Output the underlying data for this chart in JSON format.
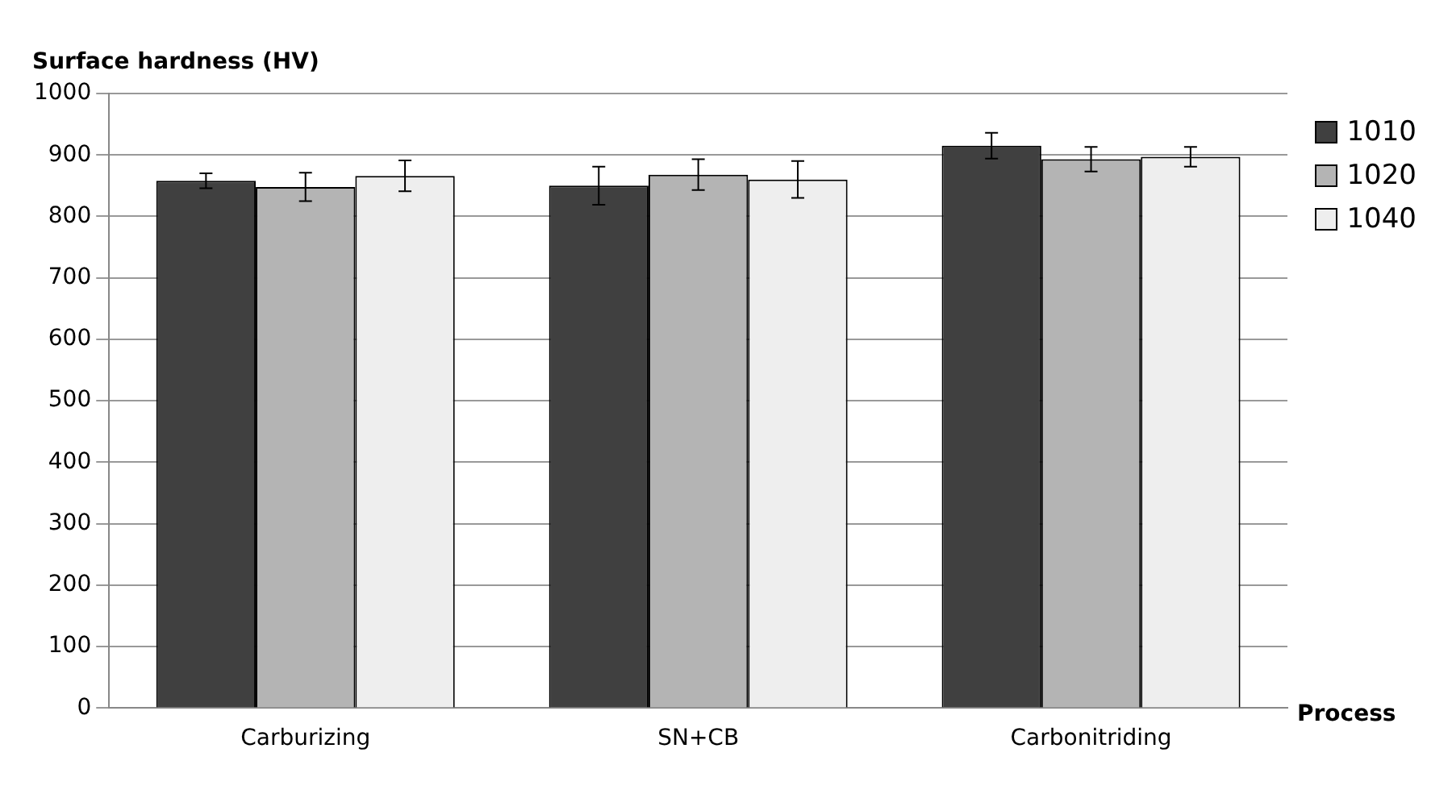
{
  "chart_data": {
    "type": "bar",
    "xlabel": "Process",
    "ylabel": "Surface hardness (HV)",
    "categories": [
      "Carburizing",
      "SN+CB",
      "Carbonitriding"
    ],
    "series": [
      {
        "name": "1010",
        "color": "#404040",
        "values": [
          858,
          850,
          915
        ],
        "errors": [
          12,
          31,
          21
        ]
      },
      {
        "name": "1020",
        "color": "#b4b4b4",
        "values": [
          848,
          868,
          893
        ],
        "errors": [
          23,
          25,
          20
        ]
      },
      {
        "name": "1040",
        "color": "#eeeeee",
        "values": [
          866,
          860,
          897
        ],
        "errors": [
          25,
          30,
          16
        ]
      }
    ],
    "ylim": [
      0,
      1000
    ],
    "yticks": [
      0,
      100,
      200,
      300,
      400,
      500,
      600,
      700,
      800,
      900,
      1000
    ],
    "grid": "y",
    "legend": "right"
  }
}
